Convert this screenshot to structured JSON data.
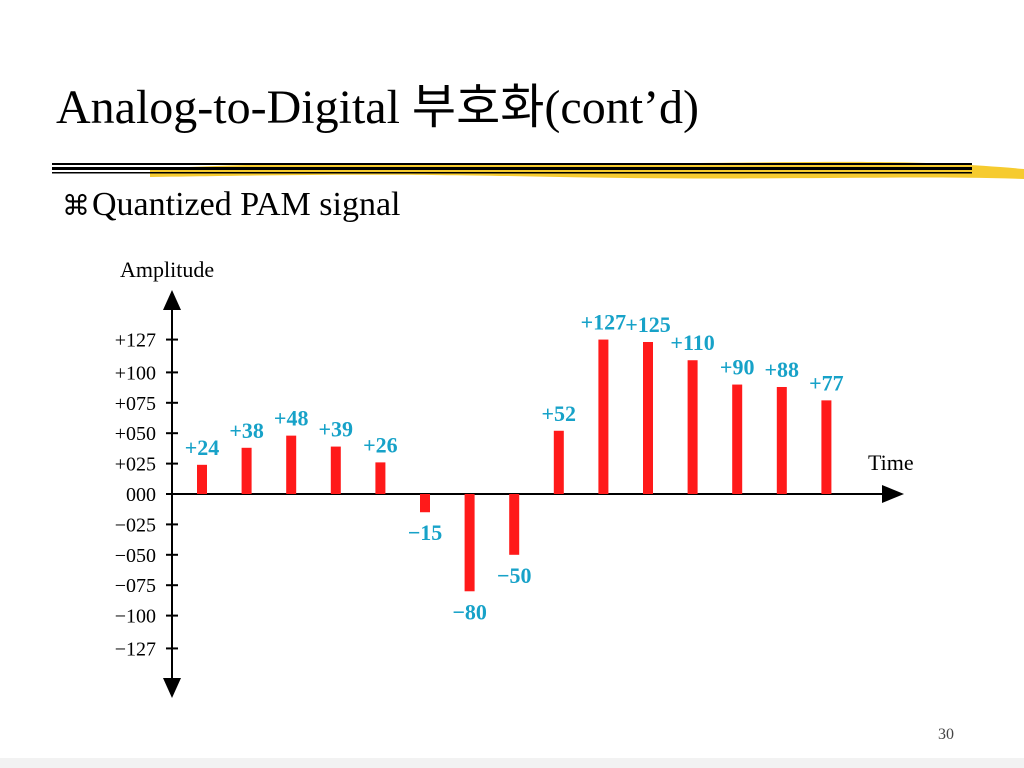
{
  "slide": {
    "title": "Analog-to-Digital 부호화(cont’d)",
    "bullet_glyph": "⌘",
    "bullet_text": "Quantized PAM signal",
    "slide_number": "30"
  },
  "colors": {
    "bar": "#ff1a1a",
    "data_label": "#17a2c8",
    "axis": "#000000",
    "underline_highlight": "#f5c518"
  },
  "chart_data": {
    "type": "bar",
    "title": "",
    "xlabel": "Time",
    "ylabel": "Amplitude",
    "ylim": [
      -127,
      127
    ],
    "y_ticks": [
      127,
      100,
      75,
      50,
      25,
      0,
      -25,
      -50,
      -75,
      -100,
      -127
    ],
    "y_tick_labels": [
      "+127",
      "+100",
      "+075",
      "+050",
      "+025",
      "000",
      "−025",
      "−050",
      "−075",
      "−100",
      "−127"
    ],
    "values": [
      24,
      38,
      48,
      39,
      26,
      -15,
      -80,
      -50,
      52,
      127,
      125,
      110,
      90,
      88,
      77
    ],
    "value_labels": [
      "+24",
      "+38",
      "+48",
      "+39",
      "+26",
      "−15",
      "−80",
      "−50",
      "+52",
      "+127",
      "+125",
      "+110",
      "+90",
      "+88",
      "+77"
    ],
    "grid": false,
    "legend": "none"
  }
}
